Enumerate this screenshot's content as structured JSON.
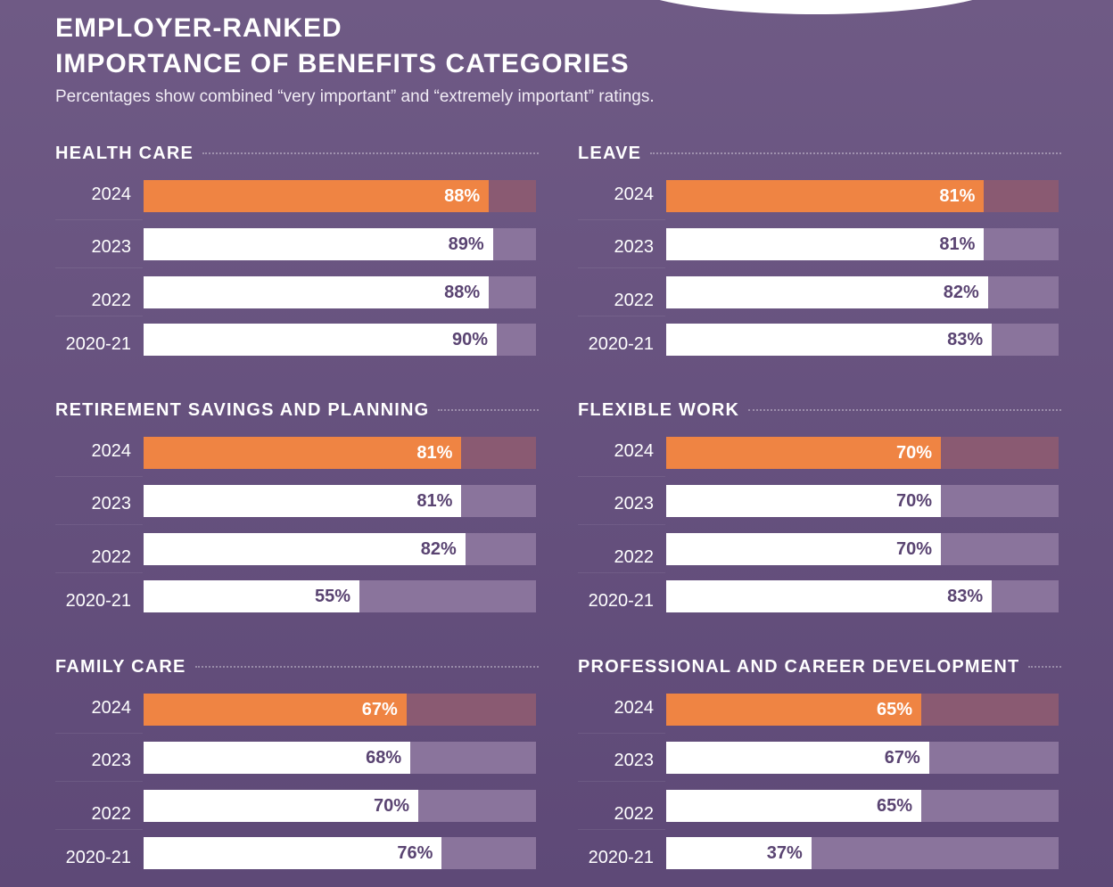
{
  "colors": {
    "current": "#ef8443",
    "current_track": "#8a5a72",
    "past": "#ffffff",
    "past_track": "#8a749c",
    "past_label": "#5a4472",
    "background": "#6a5580"
  },
  "chart_data": {
    "type": "bar",
    "orientation": "horizontal",
    "title_line1": "EMPLOYER-RANKED",
    "title_line2": "IMPORTANCE OF BENEFITS CATEGORIES",
    "subtitle": "Percentages show combined “very important” and “extremely important” ratings.",
    "xlim": [
      0,
      100
    ],
    "unit": "%",
    "categories": [
      "2024",
      "2023",
      "2022",
      "2020-21"
    ],
    "panels": [
      {
        "title": "HEALTH CARE",
        "values": [
          88,
          89,
          88,
          90
        ],
        "labels": [
          "88%",
          "89%",
          "88%",
          "90%"
        ]
      },
      {
        "title": "LEAVE",
        "values": [
          81,
          81,
          82,
          83
        ],
        "labels": [
          "81%",
          "81%",
          "82%",
          "83%"
        ]
      },
      {
        "title": "RETIREMENT SAVINGS AND PLANNING",
        "values": [
          81,
          81,
          82,
          55
        ],
        "labels": [
          "81%",
          "81%",
          "82%",
          "55%"
        ]
      },
      {
        "title": "FLEXIBLE WORK",
        "values": [
          70,
          70,
          70,
          83
        ],
        "labels": [
          "70%",
          "70%",
          "70%",
          "83%"
        ]
      },
      {
        "title": "FAMILY CARE",
        "values": [
          67,
          68,
          70,
          76
        ],
        "labels": [
          "67%",
          "68%",
          "70%",
          "76%"
        ]
      },
      {
        "title": "PROFESSIONAL AND CAREER DEVELOPMENT",
        "values": [
          65,
          67,
          65,
          37
        ],
        "labels": [
          "65%",
          "67%",
          "65%",
          "37%"
        ]
      }
    ]
  }
}
